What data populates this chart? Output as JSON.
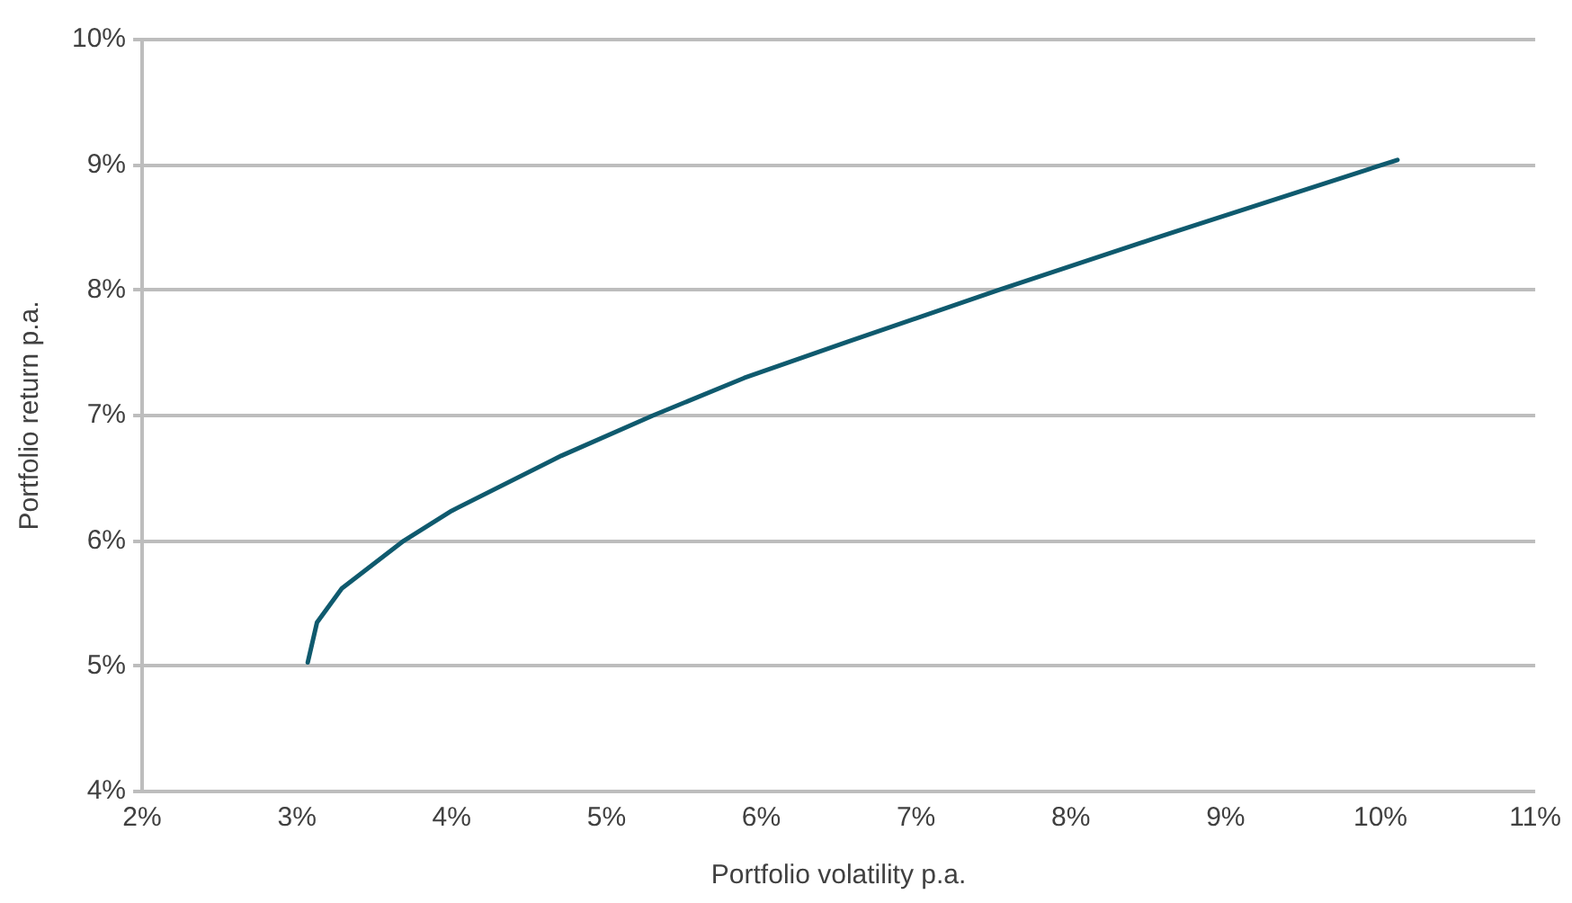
{
  "chart_data": {
    "type": "line",
    "xlabel": "Portfolio volatility p.a.",
    "ylabel": "Portfolio return p.a.",
    "x": [
      3.07,
      3.13,
      3.29,
      3.69,
      4.0,
      4.71,
      5.3,
      5.89,
      6.56,
      7.53,
      8.53,
      10.11
    ],
    "series": [
      {
        "color": "#0f5a6e",
        "values": [
          5.03,
          5.35,
          5.62,
          6.0,
          6.24,
          6.68,
          7.0,
          7.3,
          7.59,
          8.0,
          8.41,
          9.04
        ]
      }
    ],
    "xlim": [
      2,
      11
    ],
    "ylim": [
      4,
      10
    ],
    "xticks": [
      {
        "value": 2,
        "label": "2%"
      },
      {
        "value": 3,
        "label": "3%"
      },
      {
        "value": 4,
        "label": "4%"
      },
      {
        "value": 5,
        "label": "5%"
      },
      {
        "value": 6,
        "label": "6%"
      },
      {
        "value": 7,
        "label": "7%"
      },
      {
        "value": 8,
        "label": "8%"
      },
      {
        "value": 9,
        "label": "9%"
      },
      {
        "value": 10,
        "label": "10%"
      },
      {
        "value": 11,
        "label": "11%"
      }
    ],
    "yticks": [
      {
        "value": 4,
        "label": "4%"
      },
      {
        "value": 5,
        "label": "5%"
      },
      {
        "value": 6,
        "label": "6%"
      },
      {
        "value": 7,
        "label": "7%"
      },
      {
        "value": 8,
        "label": "8%"
      },
      {
        "value": 9,
        "label": "9%"
      },
      {
        "value": 10,
        "label": "10%"
      }
    ],
    "grid": "y",
    "legend": false,
    "marker": "none",
    "line_style": "solid"
  }
}
